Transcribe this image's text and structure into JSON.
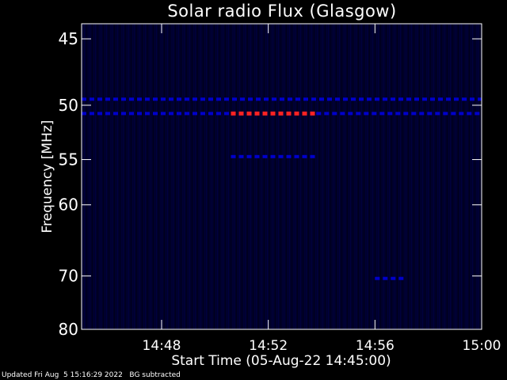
{
  "chart_data": {
    "type": "heatmap",
    "title": "Solar radio Flux (Glasgow)",
    "xlabel": "Start Time (05-Aug-22 14:45:00)",
    "ylabel": "Frequency [MHz]",
    "x_range_minutes": [
      0,
      15
    ],
    "x_ticks": [
      {
        "minute": 3,
        "label": "14:48"
      },
      {
        "minute": 7,
        "label": "14:52"
      },
      {
        "minute": 11,
        "label": "14:56"
      },
      {
        "minute": 15,
        "label": "15:00"
      }
    ],
    "y_axis_scale": "reciprocal",
    "y_range_mhz": [
      44,
      80
    ],
    "y_ticks": [
      45,
      50,
      55,
      60,
      70,
      80
    ],
    "grid": false,
    "legend": "none",
    "colors": {
      "background": "#000000",
      "plot_background": "#00002a",
      "low_signal": "#0000cc",
      "high_signal": "#ff2222",
      "axis": "#ffffff"
    },
    "features": [
      {
        "frequency_mhz": 49.5,
        "start_minute": 0.0,
        "end_minute": 15.0,
        "level": "low"
      },
      {
        "frequency_mhz": 50.7,
        "start_minute": 0.0,
        "end_minute": 5.6,
        "level": "low"
      },
      {
        "frequency_mhz": 50.7,
        "start_minute": 5.6,
        "end_minute": 8.8,
        "level": "high"
      },
      {
        "frequency_mhz": 50.7,
        "start_minute": 8.8,
        "end_minute": 15.0,
        "level": "low"
      },
      {
        "frequency_mhz": 54.7,
        "start_minute": 5.6,
        "end_minute": 8.8,
        "level": "low"
      },
      {
        "frequency_mhz": 70.4,
        "start_minute": 11.0,
        "end_minute": 12.2,
        "level": "low"
      }
    ]
  },
  "footer": {
    "updated": "Updated Fri Aug  5 15:16:29 2022",
    "note": "BG subtracted"
  }
}
